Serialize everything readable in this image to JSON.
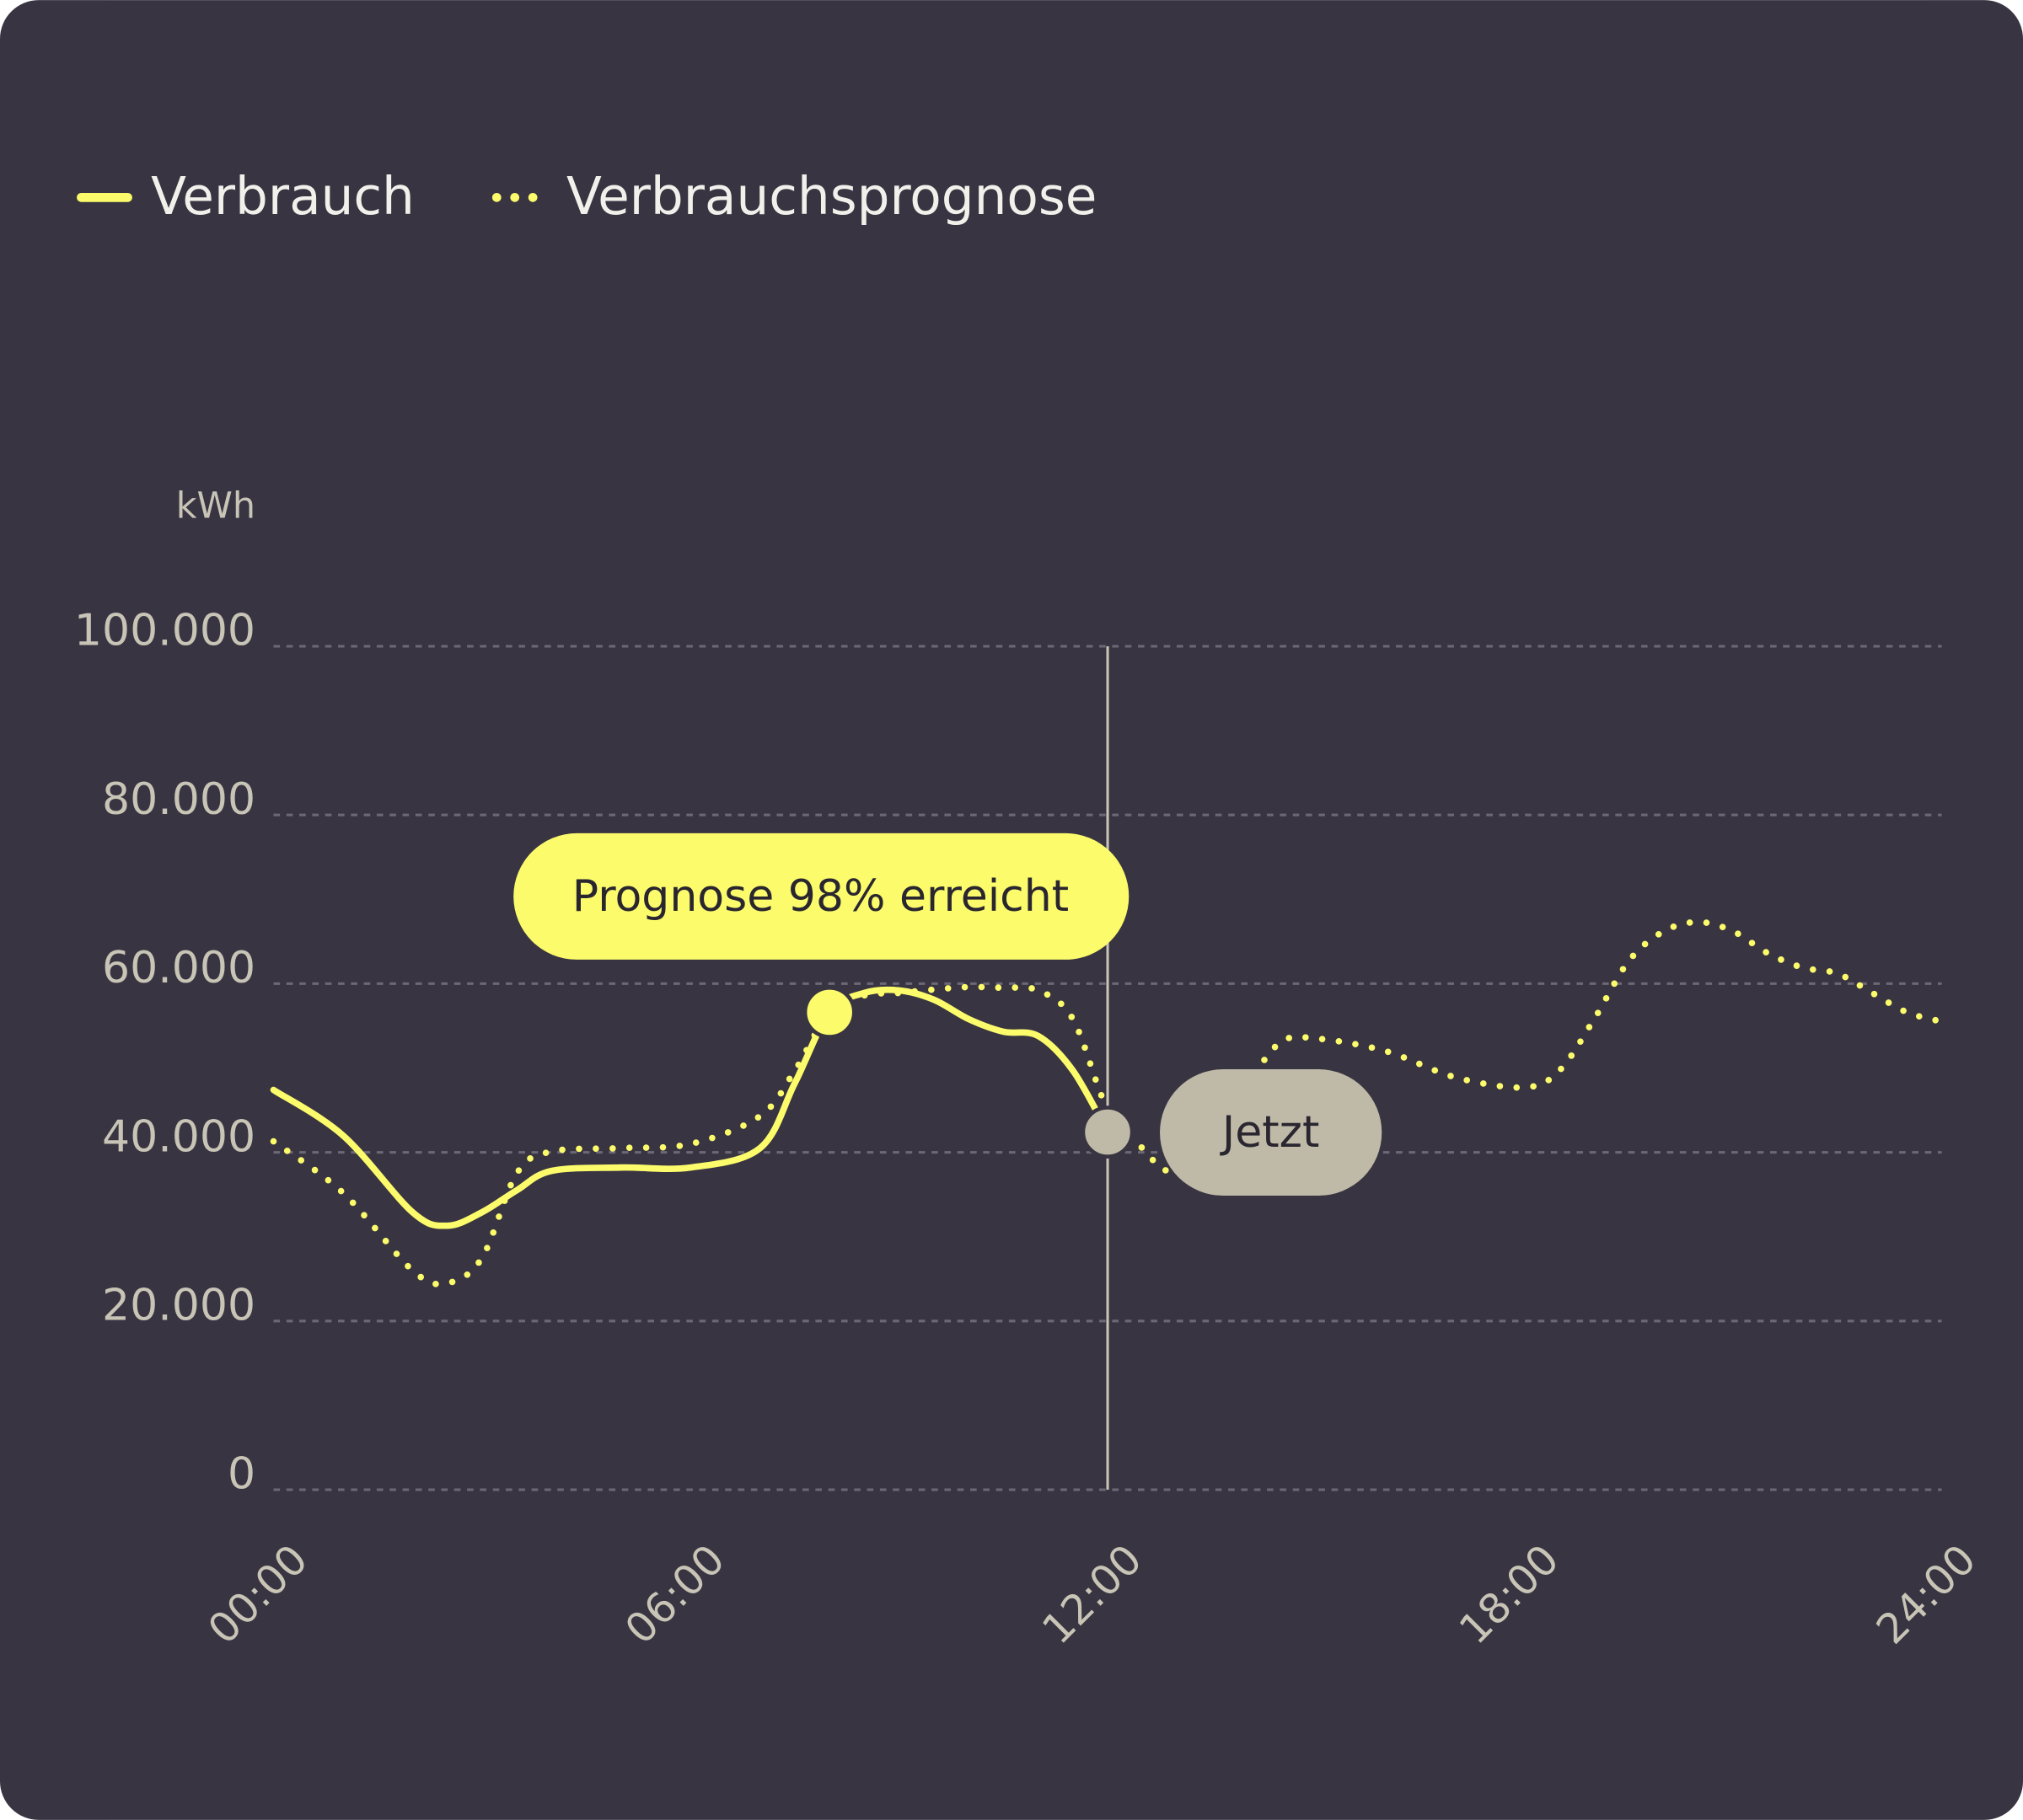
{
  "chart_data": {
    "type": "line",
    "y_label": "kWh",
    "x": [
      0,
      1,
      2,
      2.5,
      3,
      3.5,
      4,
      5,
      6,
      7,
      7.5,
      8,
      8.5,
      9,
      9.5,
      10,
      10.5,
      11,
      11.5,
      12,
      12.5,
      13,
      14,
      14.5,
      15,
      16,
      17,
      18,
      18.5,
      19,
      19.5,
      20,
      20.5,
      21,
      21.5,
      22,
      22.5,
      23,
      23.5,
      24
    ],
    "series": [
      {
        "name": "Verbrauch",
        "color": "#fbfb6b",
        "style": "solid",
        "values": [
          47400,
          42000,
          32900,
          31300,
          32900,
          35500,
          37800,
          38200,
          38200,
          40500,
          48200,
          56600,
          58900,
          59200,
          58100,
          55800,
          54300,
          53800,
          49700,
          42400,
          null,
          null,
          null,
          null,
          null,
          null,
          null,
          null,
          null,
          null,
          null,
          null,
          null,
          null,
          null,
          null,
          null,
          null,
          null,
          null
        ]
      },
      {
        "name": "Verbrauchsprognose",
        "color": "#fbfb6b",
        "style": "dotted",
        "values": [
          41300,
          35200,
          26000,
          24500,
          27500,
          37500,
          40100,
          40500,
          41000,
          44300,
          49700,
          56600,
          58600,
          58900,
          59300,
          59600,
          59500,
          59200,
          55800,
          45100,
          40500,
          38200,
          48200,
          53100,
          53500,
          52000,
          48900,
          47700,
          49700,
          55800,
          62700,
          66200,
          67300,
          66200,
          63600,
          61900,
          61200,
          58900,
          56600,
          55500
        ]
      }
    ],
    "xlim": [
      0,
      24
    ],
    "xticks": [
      {
        "value": 0,
        "label": "00:00"
      },
      {
        "value": 6,
        "label": "06:00"
      },
      {
        "value": 12,
        "label": "12:00"
      },
      {
        "value": 18,
        "label": "18:00"
      },
      {
        "value": 24,
        "label": "24:00"
      }
    ],
    "ylim": [
      0,
      100000
    ],
    "yticks": [
      0,
      {
        "value": 20000,
        "label": "20.000"
      },
      {
        "value": 40000,
        "label": "40.000"
      },
      {
        "value": 60000,
        "label": "60.000"
      },
      {
        "value": 80000,
        "label": "80.000"
      },
      {
        "value": 100000,
        "label": "100.000"
      }
    ],
    "grid": true,
    "highlight": {
      "x": 8,
      "label": "Prognose 98% erreicht"
    },
    "now": {
      "x": 12,
      "label": "Jetzt"
    }
  }
}
